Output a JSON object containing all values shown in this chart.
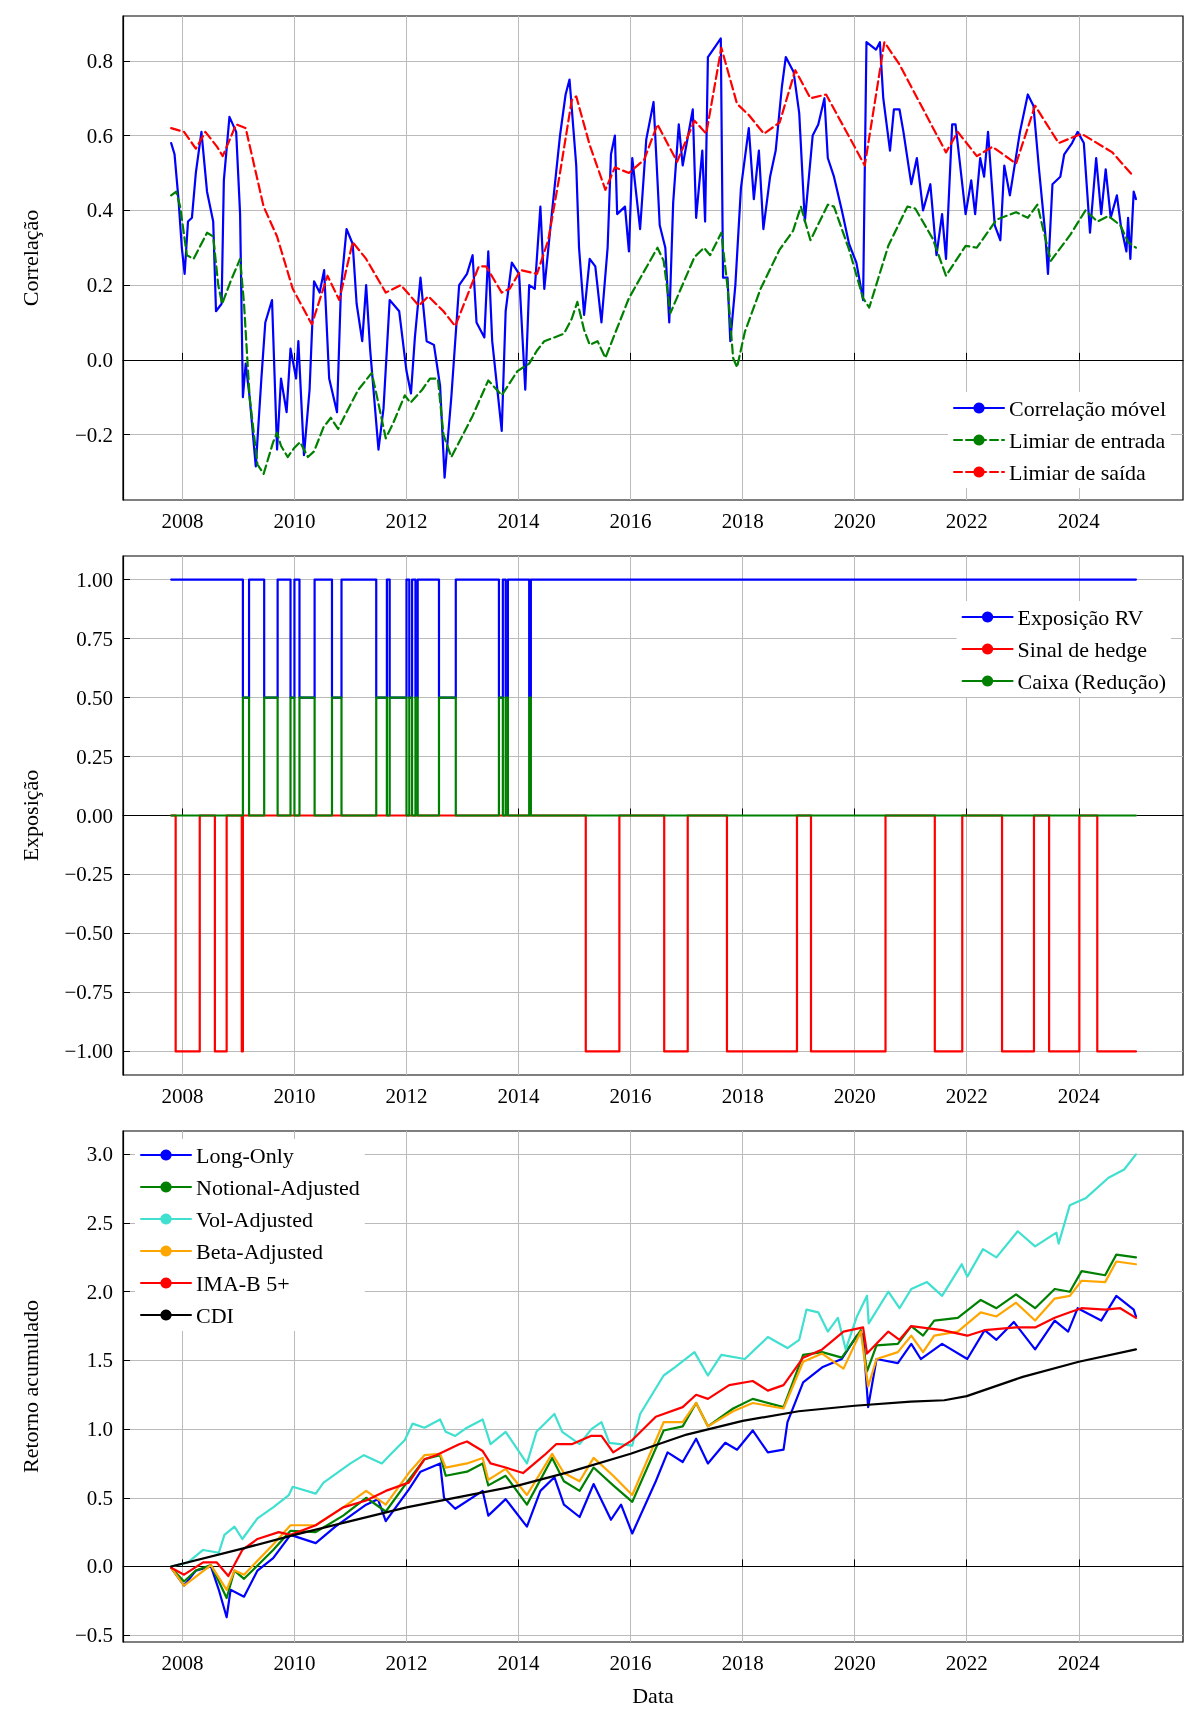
{
  "chart_data": [
    {
      "type": "line",
      "ylabel": "Correlação",
      "xlim": [
        2006.94,
        2025.86
      ],
      "xticks": [
        2008,
        2010,
        2012,
        2014,
        2016,
        2018,
        2020,
        2022,
        2024
      ],
      "ylim": [
        -0.375,
        0.92
      ],
      "yticks": [
        {
          "value": -0.2,
          "label": "−0.2"
        },
        {
          "value": 0,
          "label": "0.0"
        },
        {
          "value": 0.2,
          "label": "0.2"
        },
        {
          "value": 0.4,
          "label": "0.4"
        },
        {
          "value": 0.6,
          "label": "0.6"
        },
        {
          "value": 0.8,
          "label": "0.8"
        }
      ],
      "grid": true,
      "legend": "bottom right",
      "series": [
        {
          "name": "Correlação móvel",
          "color": "#0000ff",
          "line_style": "solid",
          "x": [
            2007.8,
            2007.86,
            2007.93,
            2007.99,
            2008.04,
            2008.1,
            2008.17,
            2008.24,
            2008.34,
            2008.44,
            2008.55,
            2008.6,
            2008.7,
            2008.74,
            2008.84,
            2008.96,
            2009.03,
            2009.08,
            2009.13,
            2009.2,
            2009.31,
            2009.41,
            2009.48,
            2009.6,
            2009.69,
            2009.76,
            2009.86,
            2009.93,
            2010.03,
            2010.07,
            2010.17,
            2010.27,
            2010.35,
            2010.45,
            2010.53,
            2010.62,
            2010.76,
            2010.83,
            2010.93,
            2011.04,
            2011.11,
            2011.21,
            2011.28,
            2011.35,
            2011.5,
            2011.59,
            2011.7,
            2011.87,
            2012.0,
            2012.08,
            2012.15,
            2012.25,
            2012.36,
            2012.49,
            2012.6,
            2012.68,
            2012.8,
            2012.94,
            2013.08,
            2013.18,
            2013.25,
            2013.39,
            2013.46,
            2013.53,
            2013.7,
            2013.77,
            2013.88,
            2014.01,
            2014.12,
            2014.19,
            2014.29,
            2014.39,
            2014.46,
            2014.6,
            2014.74,
            2014.84,
            2014.91,
            2015.03,
            2015.08,
            2015.17,
            2015.27,
            2015.37,
            2015.48,
            2015.59,
            2015.65,
            2015.72,
            2015.76,
            2015.9,
            2015.97,
            2016.03,
            2016.17,
            2016.28,
            2016.41,
            2016.52,
            2016.62,
            2016.69,
            2016.76,
            2016.86,
            2016.93,
            2017.11,
            2017.17,
            2017.28,
            2017.33,
            2017.38,
            2017.52,
            2017.61,
            2017.65,
            2017.73,
            2017.78,
            2017.87,
            2017.97,
            2018.11,
            2018.2,
            2018.29,
            2018.37,
            2018.49,
            2018.59,
            2018.7,
            2018.77,
            2018.91,
            2019.01,
            2019.11,
            2019.25,
            2019.35,
            2019.46,
            2019.52,
            2019.63,
            2019.77,
            2019.9,
            2020.03,
            2020.15,
            2020.21,
            2020.38,
            2020.45,
            2020.51,
            2020.63,
            2020.7,
            2020.8,
            2020.87,
            2021.01,
            2021.11,
            2021.22,
            2021.35,
            2021.46,
            2021.56,
            2021.63,
            2021.74,
            2021.8,
            2021.98,
            2022.08,
            2022.15,
            2022.24,
            2022.31,
            2022.38,
            2022.5,
            2022.6,
            2022.67,
            2022.77,
            2022.95,
            2023.09,
            2023.19,
            2023.29,
            2023.4,
            2023.45,
            2023.53,
            2023.67,
            2023.74,
            2023.88,
            2023.98,
            2024.09,
            2024.2,
            2024.31,
            2024.4,
            2024.48,
            2024.57,
            2024.68,
            2024.75,
            2024.85,
            2024.88,
            2024.92,
            2024.98,
            2025.02
          ],
          "values": [
            0.58,
            0.55,
            0.43,
            0.3,
            0.23,
            0.37,
            0.38,
            0.5,
            0.61,
            0.45,
            0.37,
            0.13,
            0.15,
            0.48,
            0.65,
            0.61,
            0.39,
            -0.1,
            -0.01,
            -0.1,
            -0.285,
            -0.05,
            0.1,
            0.16,
            -0.24,
            -0.05,
            -0.14,
            0.03,
            -0.05,
            0.05,
            -0.255,
            -0.08,
            0.21,
            0.18,
            0.24,
            -0.05,
            -0.14,
            0.19,
            0.35,
            0.31,
            0.15,
            0.05,
            0.2,
            0.03,
            -0.24,
            -0.13,
            0.16,
            0.13,
            -0.03,
            -0.09,
            0.06,
            0.22,
            0.05,
            0.04,
            -0.07,
            -0.315,
            -0.1,
            0.2,
            0.23,
            0.28,
            0.1,
            0.06,
            0.29,
            0.05,
            -0.19,
            0.13,
            0.26,
            0.23,
            -0.08,
            0.2,
            0.19,
            0.41,
            0.19,
            0.4,
            0.6,
            0.71,
            0.75,
            0.52,
            0.3,
            0.12,
            0.27,
            0.25,
            0.1,
            0.3,
            0.55,
            0.6,
            0.39,
            0.41,
            0.29,
            0.54,
            0.35,
            0.59,
            0.69,
            0.36,
            0.3,
            0.1,
            0.42,
            0.63,
            0.52,
            0.67,
            0.38,
            0.56,
            0.37,
            0.81,
            0.84,
            0.86,
            0.22,
            0.22,
            0.05,
            0.2,
            0.46,
            0.62,
            0.43,
            0.56,
            0.35,
            0.49,
            0.56,
            0.73,
            0.81,
            0.77,
            0.66,
            0.37,
            0.6,
            0.63,
            0.7,
            0.54,
            0.49,
            0.4,
            0.31,
            0.26,
            0.16,
            0.85,
            0.83,
            0.85,
            0.7,
            0.56,
            0.67,
            0.67,
            0.61,
            0.47,
            0.54,
            0.4,
            0.47,
            0.28,
            0.39,
            0.27,
            0.63,
            0.63,
            0.39,
            0.48,
            0.39,
            0.54,
            0.49,
            0.61,
            0.36,
            0.32,
            0.52,
            0.44,
            0.61,
            0.71,
            0.68,
            0.51,
            0.34,
            0.23,
            0.47,
            0.49,
            0.55,
            0.58,
            0.61,
            0.58,
            0.34,
            0.54,
            0.39,
            0.51,
            0.38,
            0.44,
            0.36,
            0.29,
            0.38,
            0.27,
            0.45,
            0.43
          ]
        },
        {
          "name": "Limiar de entrada",
          "color": "#008000",
          "line_style": "dashed",
          "x": [
            2007.8,
            2007.89,
            2007.96,
            2008.08,
            2008.2,
            2008.44,
            2008.55,
            2008.64,
            2008.71,
            2008.86,
            2009.03,
            2009.1,
            2009.2,
            2009.34,
            2009.45,
            2009.62,
            2009.69,
            2009.76,
            2009.88,
            2010.0,
            2010.1,
            2010.24,
            2010.35,
            2010.52,
            2010.65,
            2010.78,
            2010.93,
            2011.14,
            2011.38,
            2011.49,
            2011.63,
            2011.76,
            2011.97,
            2012.07,
            2012.28,
            2012.42,
            2012.56,
            2012.66,
            2012.8,
            2012.94,
            2013.18,
            2013.46,
            2013.7,
            2013.98,
            2014.19,
            2014.33,
            2014.46,
            2014.64,
            2014.81,
            2014.95,
            2015.05,
            2015.17,
            2015.27,
            2015.41,
            2015.55,
            2015.97,
            2016.48,
            2016.59,
            2016.71,
            2017.14,
            2017.31,
            2017.42,
            2017.62,
            2017.73,
            2017.83,
            2017.9,
            2018.04,
            2018.32,
            2018.66,
            2018.9,
            2019.04,
            2019.21,
            2019.52,
            2019.63,
            2019.9,
            2020.15,
            2020.26,
            2020.6,
            2020.94,
            2021.08,
            2021.39,
            2021.63,
            2021.98,
            2022.18,
            2022.53,
            2022.88,
            2023.09,
            2023.26,
            2023.5,
            2023.85,
            2024.12,
            2024.33,
            2024.53,
            2024.74,
            2024.88,
            2025.02
          ],
          "values": [
            0.44,
            0.45,
            0.41,
            0.28,
            0.27,
            0.34,
            0.33,
            0.2,
            0.15,
            0.21,
            0.27,
            0.15,
            -0.1,
            -0.28,
            -0.305,
            -0.22,
            -0.195,
            -0.23,
            -0.26,
            -0.235,
            -0.22,
            -0.26,
            -0.245,
            -0.18,
            -0.155,
            -0.185,
            -0.14,
            -0.08,
            -0.035,
            -0.11,
            -0.21,
            -0.17,
            -0.095,
            -0.115,
            -0.08,
            -0.05,
            -0.05,
            -0.2,
            -0.26,
            -0.22,
            -0.15,
            -0.055,
            -0.095,
            -0.03,
            -0.01,
            0.025,
            0.05,
            0.06,
            0.07,
            0.11,
            0.155,
            0.08,
            0.04,
            0.05,
            0.005,
            0.165,
            0.3,
            0.265,
            0.125,
            0.275,
            0.3,
            0.28,
            0.34,
            0.195,
            0.005,
            -0.02,
            0.075,
            0.19,
            0.295,
            0.345,
            0.41,
            0.32,
            0.415,
            0.41,
            0.295,
            0.165,
            0.14,
            0.305,
            0.41,
            0.405,
            0.325,
            0.225,
            0.305,
            0.3,
            0.375,
            0.395,
            0.38,
            0.415,
            0.265,
            0.335,
            0.4,
            0.37,
            0.385,
            0.36,
            0.315,
            0.3
          ]
        },
        {
          "name": "Limiar de saída",
          "color": "#ff0000",
          "line_style": "dashed",
          "x": [
            2007.8,
            2008.03,
            2008.24,
            2008.41,
            2008.62,
            2008.72,
            2008.96,
            2009.13,
            2009.45,
            2009.69,
            2009.97,
            2010.31,
            2010.59,
            2010.8,
            2011.04,
            2011.28,
            2011.63,
            2011.9,
            2012.22,
            2012.39,
            2012.66,
            2012.87,
            2013.29,
            2013.42,
            2013.7,
            2013.84,
            2014.04,
            2014.33,
            2014.53,
            2014.74,
            2014.95,
            2015.03,
            2015.27,
            2015.55,
            2015.72,
            2015.97,
            2016.24,
            2016.48,
            2016.83,
            2017.14,
            2017.35,
            2017.62,
            2017.9,
            2018.11,
            2018.38,
            2018.66,
            2018.94,
            2019.21,
            2019.49,
            2020.18,
            2020.53,
            2020.8,
            2021.63,
            2021.84,
            2022.18,
            2022.46,
            2022.88,
            2023.22,
            2023.64,
            2024.05,
            2024.6,
            2024.98
          ],
          "values": [
            0.62,
            0.61,
            0.565,
            0.61,
            0.57,
            0.545,
            0.63,
            0.62,
            0.41,
            0.33,
            0.19,
            0.095,
            0.225,
            0.16,
            0.315,
            0.27,
            0.18,
            0.2,
            0.145,
            0.17,
            0.13,
            0.09,
            0.25,
            0.25,
            0.18,
            0.19,
            0.24,
            0.23,
            0.32,
            0.5,
            0.695,
            0.705,
            0.575,
            0.455,
            0.515,
            0.5,
            0.535,
            0.63,
            0.53,
            0.64,
            0.605,
            0.835,
            0.685,
            0.655,
            0.605,
            0.635,
            0.775,
            0.7,
            0.71,
            0.52,
            0.85,
            0.79,
            0.555,
            0.61,
            0.545,
            0.57,
            0.525,
            0.68,
            0.58,
            0.605,
            0.555,
            0.49
          ]
        }
      ]
    },
    {
      "type": "step",
      "ylabel": "Exposição",
      "xlim": [
        2006.94,
        2025.86
      ],
      "xticks": [
        2008,
        2010,
        2012,
        2014,
        2016,
        2018,
        2020,
        2022,
        2024
      ],
      "ylim": [
        -1.1,
        1.1
      ],
      "yticks": [
        {
          "value": -1,
          "label": "−1.00"
        },
        {
          "value": -0.75,
          "label": "−0.75"
        },
        {
          "value": -0.5,
          "label": "−0.50"
        },
        {
          "value": -0.25,
          "label": "−0.25"
        },
        {
          "value": 0,
          "label": "0.00"
        },
        {
          "value": 0.25,
          "label": "0.25"
        },
        {
          "value": 0.5,
          "label": "0.50"
        },
        {
          "value": 0.75,
          "label": "0.75"
        },
        {
          "value": 1,
          "label": "1.00"
        }
      ],
      "grid": true,
      "legend": "top right",
      "series": [
        {
          "name": "Exposição RV",
          "color": "#0000ff",
          "line_style": "solid",
          "x": [
            2007.8,
            2009.08,
            2009.19,
            2009.46,
            2009.7,
            2009.93,
            2010.0,
            2010.09,
            2010.36,
            2010.67,
            2010.84,
            2011.46,
            2011.65,
            2011.7,
            2012.0,
            2012.05,
            2012.1,
            2012.16,
            2012.2,
            2012.58,
            2012.88,
            2013.65,
            2013.72,
            2013.77,
            2013.81,
            2014.19,
            2014.22,
            2025.02
          ],
          "values": [
            1,
            0.5,
            1,
            0.5,
            1,
            0.5,
            1,
            0.5,
            1,
            0.5,
            1,
            0.5,
            1,
            0.5,
            1,
            0.5,
            1,
            0.5,
            1,
            0.5,
            1,
            0.5,
            1,
            0.5,
            1,
            0.5,
            1,
            1
          ]
        },
        {
          "name": "Sinal de hedge",
          "color": "#ff0000",
          "line_style": "solid",
          "x": [
            2007.8,
            2007.88,
            2008.31,
            2008.58,
            2008.79,
            2009.06,
            2009.08,
            2015.2,
            2015.8,
            2016.6,
            2017.02,
            2017.72,
            2018.97,
            2019.22,
            2020.55,
            2021.43,
            2021.92,
            2022.63,
            2023.2,
            2023.47,
            2024.01,
            2024.33,
            2025.02
          ],
          "values": [
            0,
            -1,
            0,
            -1,
            0,
            -1,
            0,
            -1,
            0,
            -1,
            0,
            -1,
            0,
            -1,
            0,
            -1,
            0,
            -1,
            0,
            -1,
            0,
            -1,
            -1
          ]
        },
        {
          "name": "Caixa (Redução)",
          "color": "#008000",
          "line_style": "solid",
          "x": [
            2007.8,
            2009.08,
            2009.19,
            2009.46,
            2009.7,
            2009.93,
            2010.0,
            2010.09,
            2010.36,
            2010.67,
            2010.84,
            2011.46,
            2011.65,
            2011.7,
            2012.0,
            2012.05,
            2012.1,
            2012.16,
            2012.2,
            2012.58,
            2012.88,
            2013.65,
            2013.72,
            2013.77,
            2013.81,
            2014.19,
            2014.22,
            2025.02
          ],
          "values": [
            0,
            0.5,
            0,
            0.5,
            0,
            0.5,
            0,
            0.5,
            0,
            0.5,
            0,
            0.5,
            0,
            0.5,
            0,
            0.5,
            0,
            0.5,
            0,
            0.5,
            0,
            0.5,
            0,
            0.5,
            0,
            0.5,
            0,
            0
          ]
        }
      ]
    },
    {
      "type": "line",
      "xlabel": "Data",
      "ylabel": "Retorno acumulado",
      "xlim": [
        2006.94,
        2025.86
      ],
      "xticks": [
        2008,
        2010,
        2012,
        2014,
        2016,
        2018,
        2020,
        2022,
        2024
      ],
      "ylim": [
        -0.55,
        3.17
      ],
      "yticks": [
        {
          "value": -0.5,
          "label": "−0.5"
        },
        {
          "value": 0,
          "label": "0.0"
        },
        {
          "value": 0.5,
          "label": "0.5"
        },
        {
          "value": 1,
          "label": "1.0"
        },
        {
          "value": 1.5,
          "label": "1.5"
        },
        {
          "value": 2,
          "label": "2.0"
        },
        {
          "value": 2.5,
          "label": "2.5"
        },
        {
          "value": 3,
          "label": "3.0"
        }
      ],
      "grid": true,
      "legend": "top left",
      "series": [
        {
          "name": "Long-Only",
          "color": "#0000ff",
          "line_style": "solid",
          "x": [
            2007.8,
            2008.03,
            2008.24,
            2008.51,
            2008.65,
            2008.79,
            2008.86,
            2009.1,
            2009.34,
            2009.62,
            2009.93,
            2010.38,
            2010.73,
            2011.28,
            2011.49,
            2011.63,
            2012.04,
            2012.25,
            2012.6,
            2012.67,
            2012.87,
            2013.36,
            2013.46,
            2013.77,
            2014.15,
            2014.39,
            2014.64,
            2014.81,
            2015.09,
            2015.34,
            2015.65,
            2015.83,
            2016.03,
            2016.45,
            2016.66,
            2016.93,
            2017.17,
            2017.38,
            2017.69,
            2017.9,
            2018.18,
            2018.45,
            2018.73,
            2018.8,
            2019.08,
            2019.42,
            2019.77,
            2020.04,
            2020.15,
            2020.24,
            2020.39,
            2020.77,
            2021.01,
            2021.18,
            2021.56,
            2022.01,
            2022.32,
            2022.53,
            2022.84,
            2023.22,
            2023.57,
            2023.81,
            2023.98,
            2024.4,
            2024.67,
            2024.98,
            2025.02
          ],
          "values": [
            -0.01,
            -0.14,
            -0.03,
            0.0,
            -0.17,
            -0.37,
            -0.17,
            -0.22,
            -0.03,
            0.06,
            0.23,
            0.17,
            0.29,
            0.45,
            0.49,
            0.33,
            0.56,
            0.69,
            0.75,
            0.5,
            0.42,
            0.55,
            0.37,
            0.49,
            0.29,
            0.55,
            0.65,
            0.45,
            0.36,
            0.6,
            0.34,
            0.45,
            0.24,
            0.62,
            0.83,
            0.76,
            0.93,
            0.75,
            0.9,
            0.85,
            0.99,
            0.83,
            0.85,
            1.05,
            1.34,
            1.45,
            1.51,
            1.68,
            1.69,
            1.16,
            1.51,
            1.48,
            1.62,
            1.51,
            1.62,
            1.51,
            1.72,
            1.65,
            1.78,
            1.58,
            1.79,
            1.71,
            1.88,
            1.79,
            1.97,
            1.87,
            1.82
          ]
        },
        {
          "name": "Notional-Adjusted",
          "color": "#008000",
          "line_style": "solid",
          "x": [
            2007.8,
            2008.03,
            2008.24,
            2008.51,
            2008.79,
            2008.93,
            2009.1,
            2009.62,
            2009.93,
            2010.38,
            2010.87,
            2011.28,
            2011.63,
            2012.04,
            2012.32,
            2012.6,
            2012.7,
            2013.08,
            2013.36,
            2013.46,
            2013.77,
            2014.15,
            2014.6,
            2014.81,
            2015.09,
            2015.34,
            2015.69,
            2016.03,
            2016.59,
            2016.93,
            2017.17,
            2017.38,
            2017.83,
            2018.18,
            2018.73,
            2019.08,
            2019.42,
            2019.77,
            2020.11,
            2020.22,
            2020.39,
            2020.77,
            2021.01,
            2021.22,
            2021.42,
            2021.84,
            2022.25,
            2022.53,
            2022.88,
            2023.22,
            2023.57,
            2023.84,
            2024.05,
            2024.47,
            2024.67,
            2025.02
          ],
          "values": [
            -0.01,
            -0.11,
            -0.03,
            0.01,
            -0.23,
            -0.03,
            -0.09,
            0.12,
            0.26,
            0.25,
            0.37,
            0.5,
            0.4,
            0.63,
            0.78,
            0.81,
            0.66,
            0.69,
            0.75,
            0.59,
            0.66,
            0.45,
            0.79,
            0.62,
            0.55,
            0.72,
            0.59,
            0.47,
            0.99,
            1.02,
            1.19,
            1.02,
            1.15,
            1.22,
            1.16,
            1.54,
            1.56,
            1.52,
            1.72,
            1.42,
            1.61,
            1.62,
            1.75,
            1.68,
            1.79,
            1.81,
            1.94,
            1.88,
            1.98,
            1.88,
            2.02,
            2.0,
            2.15,
            2.12,
            2.27,
            2.25
          ]
        },
        {
          "name": "Vol-Adjusted",
          "color": "#40e0d0",
          "line_style": "solid",
          "x": [
            2007.8,
            2008.1,
            2008.37,
            2008.65,
            2008.75,
            2008.93,
            2009.07,
            2009.34,
            2009.62,
            2009.9,
            2009.97,
            2010.38,
            2010.52,
            2011.0,
            2011.24,
            2011.56,
            2011.7,
            2011.97,
            2012.11,
            2012.32,
            2012.6,
            2012.7,
            2012.87,
            2013.08,
            2013.36,
            2013.5,
            2013.77,
            2014.15,
            2014.32,
            2014.64,
            2014.78,
            2015.09,
            2015.3,
            2015.48,
            2015.62,
            2016.03,
            2016.17,
            2016.59,
            2016.79,
            2017.14,
            2017.38,
            2017.62,
            2018.04,
            2018.45,
            2018.8,
            2019.01,
            2019.14,
            2019.35,
            2019.52,
            2019.7,
            2019.84,
            2020.04,
            2020.22,
            2020.25,
            2020.6,
            2020.8,
            2021.01,
            2021.29,
            2021.56,
            2021.91,
            2022.01,
            2022.29,
            2022.53,
            2022.91,
            2023.22,
            2023.6,
            2023.64,
            2023.84,
            2024.12,
            2024.53,
            2024.81,
            2025.02
          ],
          "values": [
            0.0,
            0.03,
            0.12,
            0.1,
            0.23,
            0.29,
            0.2,
            0.35,
            0.43,
            0.52,
            0.58,
            0.53,
            0.61,
            0.75,
            0.81,
            0.75,
            0.81,
            0.92,
            1.04,
            1.01,
            1.07,
            0.98,
            0.95,
            1.01,
            1.07,
            0.89,
            0.98,
            0.75,
            0.98,
            1.11,
            0.98,
            0.89,
            1.0,
            1.05,
            0.9,
            0.88,
            1.11,
            1.39,
            1.45,
            1.56,
            1.39,
            1.54,
            1.51,
            1.67,
            1.59,
            1.65,
            1.87,
            1.85,
            1.71,
            1.81,
            1.58,
            1.82,
            1.97,
            1.77,
            2.0,
            1.88,
            2.02,
            2.07,
            1.97,
            2.2,
            2.11,
            2.31,
            2.25,
            2.44,
            2.33,
            2.43,
            2.35,
            2.63,
            2.68,
            2.83,
            2.89,
            3.0
          ]
        },
        {
          "name": "Beta-Adjusted",
          "color": "#ffa500",
          "line_style": "solid",
          "x": [
            2007.8,
            2008.03,
            2008.51,
            2008.79,
            2008.93,
            2009.1,
            2009.62,
            2009.93,
            2010.38,
            2010.87,
            2011.28,
            2011.63,
            2012.04,
            2012.32,
            2012.6,
            2012.7,
            2013.08,
            2013.36,
            2013.46,
            2013.77,
            2014.15,
            2014.6,
            2014.81,
            2015.09,
            2015.34,
            2015.69,
            2016.03,
            2016.59,
            2016.93,
            2017.17,
            2017.38,
            2017.83,
            2018.18,
            2018.73,
            2019.08,
            2019.42,
            2019.8,
            2020.11,
            2020.24,
            2020.39,
            2020.77,
            2021.01,
            2021.22,
            2021.42,
            2021.84,
            2022.25,
            2022.53,
            2022.88,
            2023.22,
            2023.57,
            2023.84,
            2024.05,
            2024.47,
            2024.67,
            2025.02
          ],
          "values": [
            -0.01,
            -0.14,
            0.01,
            -0.17,
            -0.03,
            -0.06,
            0.16,
            0.3,
            0.3,
            0.43,
            0.55,
            0.45,
            0.68,
            0.81,
            0.82,
            0.72,
            0.75,
            0.79,
            0.63,
            0.71,
            0.52,
            0.82,
            0.68,
            0.62,
            0.79,
            0.66,
            0.52,
            1.05,
            1.05,
            1.19,
            1.02,
            1.13,
            1.19,
            1.15,
            1.49,
            1.55,
            1.44,
            1.71,
            1.31,
            1.51,
            1.56,
            1.68,
            1.56,
            1.68,
            1.71,
            1.85,
            1.82,
            1.92,
            1.79,
            1.95,
            1.97,
            2.08,
            2.07,
            2.22,
            2.2
          ]
        },
        {
          "name": "IMA-B 5+",
          "color": "#ff0000",
          "line_style": "solid",
          "x": [
            2007.8,
            2008.03,
            2008.37,
            2008.61,
            2008.82,
            2009.07,
            2009.34,
            2009.72,
            2009.93,
            2010.38,
            2010.87,
            2011.28,
            2011.63,
            2012.04,
            2012.32,
            2012.53,
            2012.94,
            2013.08,
            2013.36,
            2013.5,
            2013.77,
            2014.08,
            2014.46,
            2014.67,
            2014.95,
            2015.29,
            2015.48,
            2015.69,
            2016.03,
            2016.45,
            2016.93,
            2017.17,
            2017.38,
            2017.76,
            2018.18,
            2018.45,
            2018.73,
            2019.08,
            2019.42,
            2019.8,
            2020.15,
            2020.22,
            2020.6,
            2020.8,
            2021.01,
            2021.56,
            2022.01,
            2022.32,
            2022.88,
            2023.22,
            2023.57,
            2023.84,
            2024.05,
            2024.47,
            2024.74,
            2025.02
          ],
          "values": [
            -0.01,
            -0.06,
            0.03,
            0.03,
            -0.07,
            0.12,
            0.2,
            0.25,
            0.23,
            0.3,
            0.43,
            0.48,
            0.55,
            0.61,
            0.78,
            0.81,
            0.89,
            0.91,
            0.84,
            0.75,
            0.72,
            0.68,
            0.81,
            0.89,
            0.89,
            0.95,
            0.95,
            0.83,
            0.92,
            1.09,
            1.16,
            1.25,
            1.22,
            1.32,
            1.35,
            1.28,
            1.32,
            1.52,
            1.58,
            1.71,
            1.74,
            1.55,
            1.71,
            1.65,
            1.75,
            1.72,
            1.68,
            1.72,
            1.74,
            1.74,
            1.81,
            1.85,
            1.88,
            1.87,
            1.88,
            1.81
          ]
        },
        {
          "name": "CDI",
          "color": "#000000",
          "line_style": "solid",
          "x": [
            2007.8,
            2009.07,
            2010.0,
            2011.0,
            2012.0,
            2013.0,
            2014.0,
            2014.93,
            2016.0,
            2017.0,
            2018.0,
            2019.0,
            2020.0,
            2021.0,
            2021.6,
            2022.0,
            2023.0,
            2024.0,
            2025.02
          ],
          "values": [
            0.0,
            0.13,
            0.23,
            0.33,
            0.43,
            0.51,
            0.59,
            0.69,
            0.82,
            0.96,
            1.06,
            1.13,
            1.17,
            1.2,
            1.21,
            1.24,
            1.38,
            1.49,
            1.58
          ]
        }
      ]
    }
  ]
}
